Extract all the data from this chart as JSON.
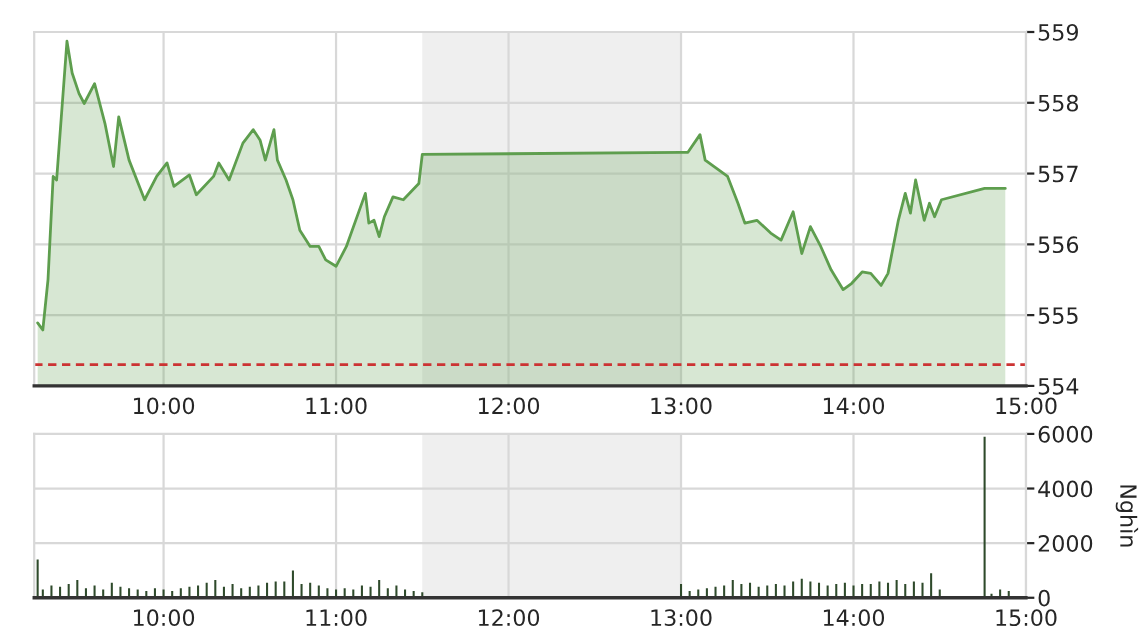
{
  "chart_data": [
    {
      "type": "area",
      "x": [
        9.27,
        9.3,
        9.33,
        9.36,
        9.38,
        9.44,
        9.47,
        9.51,
        9.54,
        9.6,
        9.66,
        9.71,
        9.74,
        9.8,
        9.89,
        9.96,
        10.02,
        10.06,
        10.15,
        10.19,
        10.29,
        10.32,
        10.38,
        10.46,
        10.52,
        10.56,
        10.59,
        10.64,
        10.66,
        10.71,
        10.75,
        10.79,
        10.85,
        10.9,
        10.94,
        11.0,
        11.06,
        11.17,
        11.19,
        11.22,
        11.25,
        11.28,
        11.33,
        11.39,
        11.48,
        11.5,
        13.0,
        13.04,
        13.11,
        13.14,
        13.19,
        13.27,
        13.33,
        13.37,
        13.44,
        13.52,
        13.58,
        13.65,
        13.7,
        13.75,
        13.81,
        13.87,
        13.94,
        13.99,
        14.05,
        14.1,
        14.16,
        14.2,
        14.26,
        14.3,
        14.33,
        14.36,
        14.41,
        14.44,
        14.47,
        14.51,
        14.76,
        14.88
      ],
      "series": [
        {
          "color": "#5e9e4e",
          "values": [
            554.89,
            554.79,
            555.5,
            556.96,
            556.91,
            558.87,
            558.42,
            558.13,
            557.99,
            558.27,
            557.71,
            557.1,
            557.8,
            557.19,
            556.63,
            556.96,
            557.15,
            556.82,
            556.98,
            556.7,
            556.96,
            557.15,
            556.91,
            557.43,
            557.62,
            557.47,
            557.19,
            557.62,
            557.19,
            556.91,
            556.63,
            556.2,
            555.97,
            555.97,
            555.78,
            555.69,
            555.97,
            556.72,
            556.3,
            556.34,
            556.11,
            556.39,
            556.67,
            556.63,
            556.86,
            557.27,
            557.3,
            557.3,
            557.55,
            557.19,
            557.1,
            556.96,
            556.58,
            556.3,
            556.34,
            556.16,
            556.06,
            556.46,
            555.87,
            556.25,
            555.97,
            555.64,
            555.36,
            555.45,
            555.61,
            555.59,
            555.42,
            555.59,
            556.34,
            556.72,
            556.44,
            556.91,
            556.34,
            556.58,
            556.39,
            556.63,
            556.79,
            556.79
          ]
        }
      ],
      "xlim": [
        9.25,
        15
      ],
      "xticks": [
        {
          "value": 10,
          "label": "10:00"
        },
        {
          "value": 11,
          "label": "11:00"
        },
        {
          "value": 12,
          "label": "12:00"
        },
        {
          "value": 13,
          "label": "13:00"
        },
        {
          "value": 14,
          "label": "14:00"
        },
        {
          "value": 15,
          "label": "15:00"
        }
      ],
      "ylim": [
        554,
        559
      ],
      "yticks": [
        554,
        555,
        556,
        557,
        558,
        559
      ],
      "grid": true,
      "ref_lines": [
        {
          "axis": "y",
          "value": 554.3,
          "color": "#cc3333",
          "line_style": "dashed"
        }
      ],
      "bands": [
        {
          "axis": "x",
          "from": 11.5,
          "to": 13,
          "color": "#efefef"
        }
      ]
    },
    {
      "type": "bar",
      "ylabel": "Nghìn",
      "x": [
        9.27,
        9.3,
        9.35,
        9.4,
        9.45,
        9.5,
        9.55,
        9.6,
        9.65,
        9.7,
        9.75,
        9.8,
        9.85,
        9.9,
        9.95,
        10.0,
        10.05,
        10.1,
        10.15,
        10.2,
        10.25,
        10.3,
        10.35,
        10.4,
        10.45,
        10.5,
        10.55,
        10.6,
        10.65,
        10.7,
        10.75,
        10.8,
        10.85,
        10.9,
        10.95,
        11.0,
        11.05,
        11.1,
        11.15,
        11.2,
        11.25,
        11.3,
        11.35,
        11.4,
        11.45,
        11.5,
        13.0,
        13.05,
        13.1,
        13.15,
        13.2,
        13.25,
        13.3,
        13.35,
        13.4,
        13.45,
        13.5,
        13.55,
        13.6,
        13.65,
        13.7,
        13.75,
        13.8,
        13.85,
        13.9,
        13.95,
        14.0,
        14.05,
        14.1,
        14.15,
        14.2,
        14.25,
        14.3,
        14.35,
        14.4,
        14.45,
        14.5,
        14.76,
        14.8,
        14.85,
        14.9
      ],
      "series": [
        {
          "color": "#2e4a2b",
          "values": [
            1400,
            300,
            450,
            400,
            500,
            650,
            350,
            450,
            300,
            550,
            400,
            350,
            300,
            250,
            350,
            300,
            250,
            350,
            400,
            450,
            550,
            650,
            400,
            500,
            350,
            400,
            450,
            550,
            600,
            600,
            1000,
            500,
            550,
            450,
            350,
            300,
            350,
            300,
            450,
            400,
            650,
            350,
            450,
            300,
            250,
            200,
            500,
            250,
            300,
            350,
            400,
            450,
            650,
            500,
            550,
            400,
            450,
            500,
            450,
            600,
            700,
            600,
            550,
            450,
            500,
            550,
            450,
            500,
            500,
            600,
            550,
            650,
            500,
            600,
            550,
            900,
            300,
            5900,
            150,
            300,
            250
          ]
        }
      ],
      "xlim": [
        9.25,
        15
      ],
      "xticks": [
        {
          "value": 10,
          "label": "10:00"
        },
        {
          "value": 11,
          "label": "11:00"
        },
        {
          "value": 12,
          "label": "12:00"
        },
        {
          "value": 13,
          "label": "13:00"
        },
        {
          "value": 14,
          "label": "14:00"
        },
        {
          "value": 15,
          "label": "15:00"
        }
      ],
      "ylim": [
        0,
        6000
      ],
      "yticks": [
        0,
        2000,
        4000,
        6000
      ],
      "grid": true,
      "bands": [
        {
          "axis": "x",
          "from": 11.5,
          "to": 13,
          "color": "#efefef"
        }
      ]
    }
  ]
}
